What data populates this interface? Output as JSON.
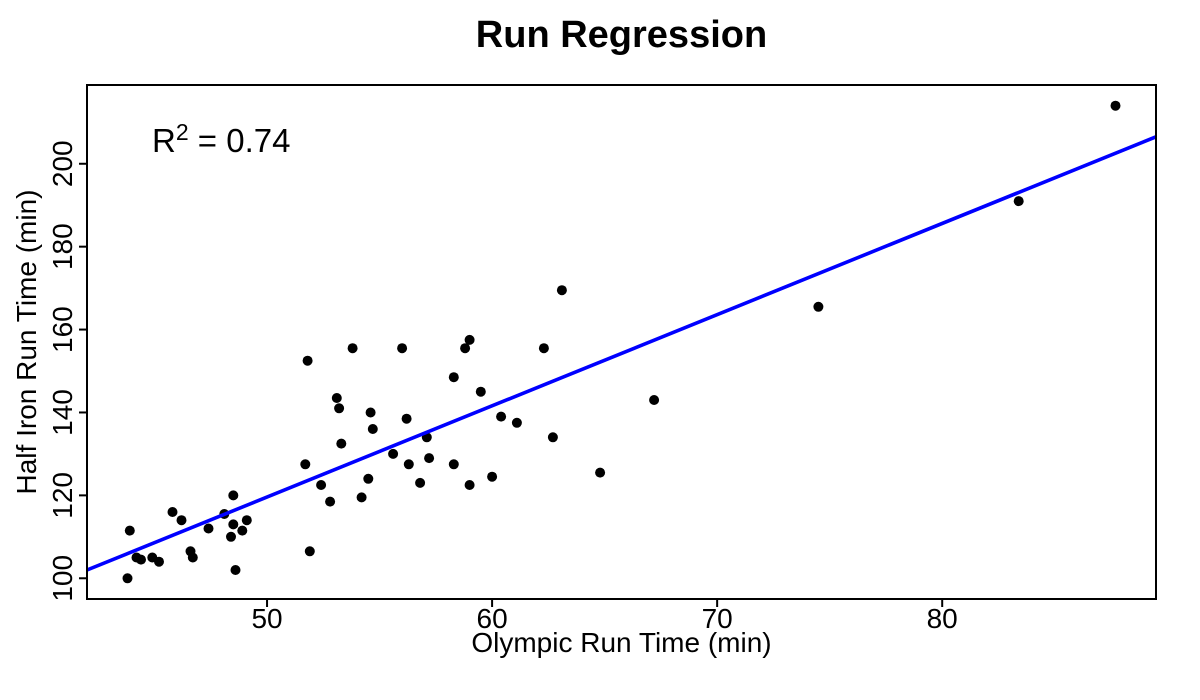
{
  "title": "Run Regression",
  "annotation": {
    "base": "R",
    "sup": "2",
    "rest": " = 0.74"
  },
  "chart_data": {
    "type": "scatter",
    "title": "Run Regression",
    "xlabel": "Olympic Run Time (min)",
    "ylabel": "Half Iron Run Time (min)",
    "xlim": [
      42,
      89.5
    ],
    "ylim": [
      95,
      219
    ],
    "xticks": [
      50,
      60,
      70,
      80
    ],
    "yticks": [
      100,
      120,
      140,
      160,
      180,
      200
    ],
    "grid": false,
    "legend": "none",
    "point_color": "#000000",
    "line_color": "#0000ff",
    "regression": {
      "slope": 2.2,
      "intercept": 9.6,
      "r_squared": 0.74
    },
    "points": [
      [
        43.8,
        100
      ],
      [
        43.9,
        111.5
      ],
      [
        44.2,
        105
      ],
      [
        44.4,
        104.5
      ],
      [
        44.9,
        105
      ],
      [
        45.2,
        104
      ],
      [
        45.8,
        116
      ],
      [
        46.2,
        114
      ],
      [
        46.6,
        106.5
      ],
      [
        46.7,
        105
      ],
      [
        47.4,
        112
      ],
      [
        48.1,
        115.5
      ],
      [
        48.4,
        110
      ],
      [
        48.5,
        113
      ],
      [
        48.5,
        120
      ],
      [
        48.6,
        102
      ],
      [
        48.9,
        111.5
      ],
      [
        49.1,
        114
      ],
      [
        51.7,
        127.5
      ],
      [
        51.8,
        152.5
      ],
      [
        51.9,
        106.5
      ],
      [
        52.4,
        122.5
      ],
      [
        52.8,
        118.5
      ],
      [
        53.1,
        143.5
      ],
      [
        53.2,
        141
      ],
      [
        53.3,
        132.5
      ],
      [
        53.8,
        155.5
      ],
      [
        54.2,
        119.5
      ],
      [
        54.5,
        124
      ],
      [
        54.6,
        140
      ],
      [
        54.7,
        136
      ],
      [
        55.6,
        130
      ],
      [
        56.0,
        155.5
      ],
      [
        56.2,
        138.5
      ],
      [
        56.3,
        127.5
      ],
      [
        56.8,
        123
      ],
      [
        57.1,
        134
      ],
      [
        57.2,
        129
      ],
      [
        58.3,
        148.5
      ],
      [
        58.3,
        127.5
      ],
      [
        58.8,
        155.5
      ],
      [
        59.0,
        157.5
      ],
      [
        59.0,
        122.5
      ],
      [
        59.5,
        145
      ],
      [
        60.0,
        124.5
      ],
      [
        60.4,
        139
      ],
      [
        61.1,
        137.5
      ],
      [
        62.3,
        155.5
      ],
      [
        62.7,
        134
      ],
      [
        63.1,
        169.5
      ],
      [
        64.8,
        125.5
      ],
      [
        67.2,
        143
      ],
      [
        74.5,
        165.5
      ],
      [
        83.4,
        191
      ],
      [
        87.7,
        214
      ]
    ]
  }
}
